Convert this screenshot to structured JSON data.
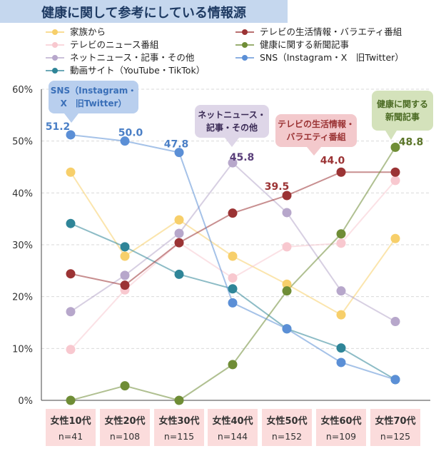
{
  "title": "健康に関して参考にしている情報源",
  "chart_data": {
    "type": "line",
    "categories": [
      {
        "label": "女性10代",
        "n": "n=41"
      },
      {
        "label": "女性20代",
        "n": "n=108"
      },
      {
        "label": "女性30代",
        "n": "n=115"
      },
      {
        "label": "女性40代",
        "n": "n=144"
      },
      {
        "label": "女性50代",
        "n": "n=152"
      },
      {
        "label": "女性60代",
        "n": "n=109"
      },
      {
        "label": "女性70代",
        "n": "n=125"
      }
    ],
    "y_ticks": [
      "0%",
      "10%",
      "20%",
      "30%",
      "40%",
      "50%",
      "60%"
    ],
    "ylim": [
      0,
      60
    ],
    "grid": true,
    "series": [
      {
        "name": "家族から",
        "color": "#f7cf6a",
        "values": [
          44.0,
          27.8,
          34.8,
          27.8,
          22.4,
          16.5,
          31.2
        ]
      },
      {
        "name": "テレビのニュース番組",
        "color": "#f8c8cf",
        "values": [
          9.8,
          21.3,
          30.4,
          23.6,
          29.6,
          30.3,
          42.4
        ]
      },
      {
        "name": "ネットニュース・記事・その他",
        "color": "#b7a7cb",
        "values": [
          17.1,
          24.1,
          32.2,
          45.8,
          36.2,
          21.1,
          15.2
        ]
      },
      {
        "name": "動画サイト（YouTube・TikTok）",
        "color": "#2f8598",
        "values": [
          34.1,
          29.6,
          24.3,
          21.5,
          13.8,
          10.1,
          4.0
        ]
      },
      {
        "name": "テレビの生活情報・バラエティ番組",
        "color": "#9b3334",
        "values": [
          24.4,
          22.2,
          30.4,
          36.1,
          39.5,
          44.0,
          44.0
        ]
      },
      {
        "name": "健康に関する新聞記事",
        "color": "#6f8d36",
        "values": [
          0.0,
          2.8,
          0.0,
          6.9,
          21.1,
          32.1,
          48.8
        ]
      },
      {
        "name": "SNS（Instagram・X　旧Twitter）",
        "color": "#5b8fd6",
        "values": [
          51.2,
          50.0,
          47.8,
          18.8,
          13.8,
          7.3,
          4.0
        ]
      }
    ],
    "data_labels": [
      {
        "series": 6,
        "index": 0,
        "text": "51.2",
        "color": "#4a7fc6"
      },
      {
        "series": 6,
        "index": 1,
        "text": "50.0",
        "color": "#4a7fc6"
      },
      {
        "series": 6,
        "index": 2,
        "text": "47.8",
        "color": "#4a7fc6"
      },
      {
        "series": 2,
        "index": 3,
        "text": "45.8",
        "color": "#5a3f7a"
      },
      {
        "series": 4,
        "index": 4,
        "text": "39.5",
        "color": "#9b3334"
      },
      {
        "series": 4,
        "index": 5,
        "text": "44.0",
        "color": "#9b3334"
      },
      {
        "series": 5,
        "index": 6,
        "text": "48.8",
        "color": "#5a7428"
      }
    ],
    "callouts": [
      {
        "lines": [
          "SNS（Instagram・",
          "X　旧Twitter）"
        ],
        "fill": "#b9cfee",
        "text_color": "#3a6fb8"
      },
      {
        "lines": [
          "ネットニュース・",
          "記事・その他"
        ],
        "fill": "#ded6e8",
        "text_color": "#3a2a55"
      },
      {
        "lines": [
          "テレビの生活情報・",
          "バラエティ番組"
        ],
        "fill": "#f3c9cc",
        "text_color": "#9b3334"
      },
      {
        "lines": [
          "健康に関する",
          "新聞記事"
        ],
        "fill": "#d4e2bb",
        "text_color": "#4a6a22"
      }
    ]
  }
}
